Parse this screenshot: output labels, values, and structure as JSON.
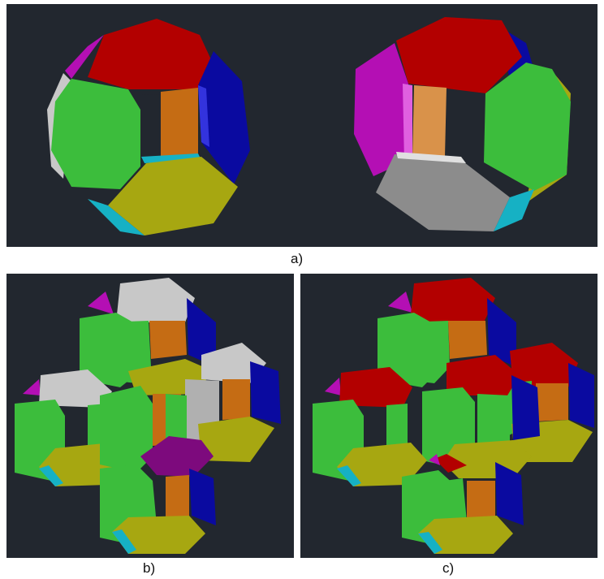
{
  "labels": {
    "a": "a)",
    "b": "b)",
    "c": "c)"
  },
  "colors": {
    "background": "#22272f",
    "red": "#b30000",
    "green": "#3cbd3c",
    "blue": "#0a0aa0",
    "olive": "#a7a711",
    "magenta": "#b40fb4",
    "gray": "#8c8c8c",
    "light_gray": "#c8c8c8",
    "orange": "#c56c14",
    "tan": "#d9924a",
    "cyan": "#16b1c4",
    "purple": "#7d0a7d"
  }
}
